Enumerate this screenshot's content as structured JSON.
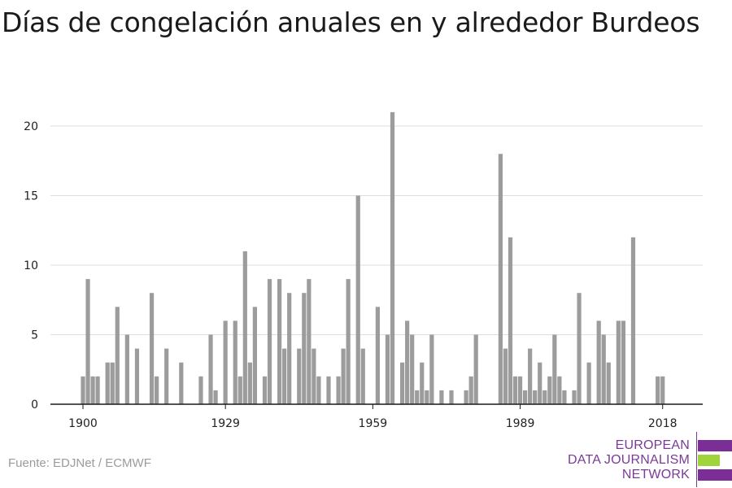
{
  "title": "Días de congelación anuales en y alrededor Burdeos",
  "source": "Fuente: EDJNet / ECMWF",
  "logo": {
    "line1": "EUROPEAN",
    "line2": "DATA JOURNALISM",
    "line3": "NETWORK",
    "purple": "#7b2f96",
    "green": "#9fd53a"
  },
  "colors": {
    "bar": "#9c9c9c",
    "grid": "#dddddd",
    "axis": "#1a1a1a",
    "text": "#222222"
  },
  "chart_data": {
    "type": "bar",
    "title": "Días de congelación anuales en y alrededor Burdeos",
    "xlabel": "",
    "ylabel": "",
    "xlim": [
      1900,
      2018
    ],
    "ylim": [
      0,
      22
    ],
    "xticks": [
      1900,
      1929,
      1959,
      1989,
      2018
    ],
    "yticks": [
      0,
      5,
      10,
      15,
      20
    ],
    "grid": true,
    "x": [
      1900,
      1901,
      1902,
      1903,
      1904,
      1905,
      1906,
      1907,
      1908,
      1909,
      1910,
      1911,
      1912,
      1913,
      1914,
      1915,
      1916,
      1917,
      1918,
      1919,
      1920,
      1921,
      1922,
      1923,
      1924,
      1925,
      1926,
      1927,
      1928,
      1929,
      1930,
      1931,
      1932,
      1933,
      1934,
      1935,
      1936,
      1937,
      1938,
      1939,
      1940,
      1941,
      1942,
      1943,
      1944,
      1945,
      1946,
      1947,
      1948,
      1949,
      1950,
      1951,
      1952,
      1953,
      1954,
      1955,
      1956,
      1957,
      1958,
      1959,
      1960,
      1961,
      1962,
      1963,
      1964,
      1965,
      1966,
      1967,
      1968,
      1969,
      1970,
      1971,
      1972,
      1973,
      1974,
      1975,
      1976,
      1977,
      1978,
      1979,
      1980,
      1981,
      1982,
      1983,
      1984,
      1985,
      1986,
      1987,
      1988,
      1989,
      1990,
      1991,
      1992,
      1993,
      1994,
      1995,
      1996,
      1997,
      1998,
      1999,
      2000,
      2001,
      2002,
      2003,
      2004,
      2005,
      2006,
      2007,
      2008,
      2009,
      2010,
      2011,
      2012,
      2013,
      2014,
      2015,
      2016,
      2017,
      2018
    ],
    "values": [
      2,
      9,
      2,
      2,
      0,
      3,
      3,
      7,
      0,
      5,
      0,
      4,
      0,
      0,
      8,
      2,
      0,
      4,
      0,
      0,
      3,
      0,
      0,
      0,
      2,
      0,
      5,
      1,
      0,
      6,
      0,
      6,
      2,
      11,
      3,
      7,
      0,
      2,
      9,
      0,
      9,
      4,
      8,
      0,
      4,
      8,
      9,
      4,
      2,
      0,
      2,
      0,
      2,
      4,
      9,
      0,
      15,
      4,
      0,
      0,
      7,
      0,
      5,
      21,
      0,
      3,
      6,
      5,
      1,
      3,
      1,
      5,
      0,
      1,
      0,
      1,
      0,
      0,
      1,
      2,
      5,
      0,
      0,
      0,
      0,
      18,
      4,
      12,
      2,
      2,
      1,
      4,
      1,
      3,
      1,
      2,
      5,
      2,
      1,
      0,
      1,
      8,
      0,
      3,
      0,
      6,
      5,
      3,
      0,
      6,
      6,
      0,
      12,
      0,
      0,
      0,
      0,
      2,
      2
    ]
  }
}
